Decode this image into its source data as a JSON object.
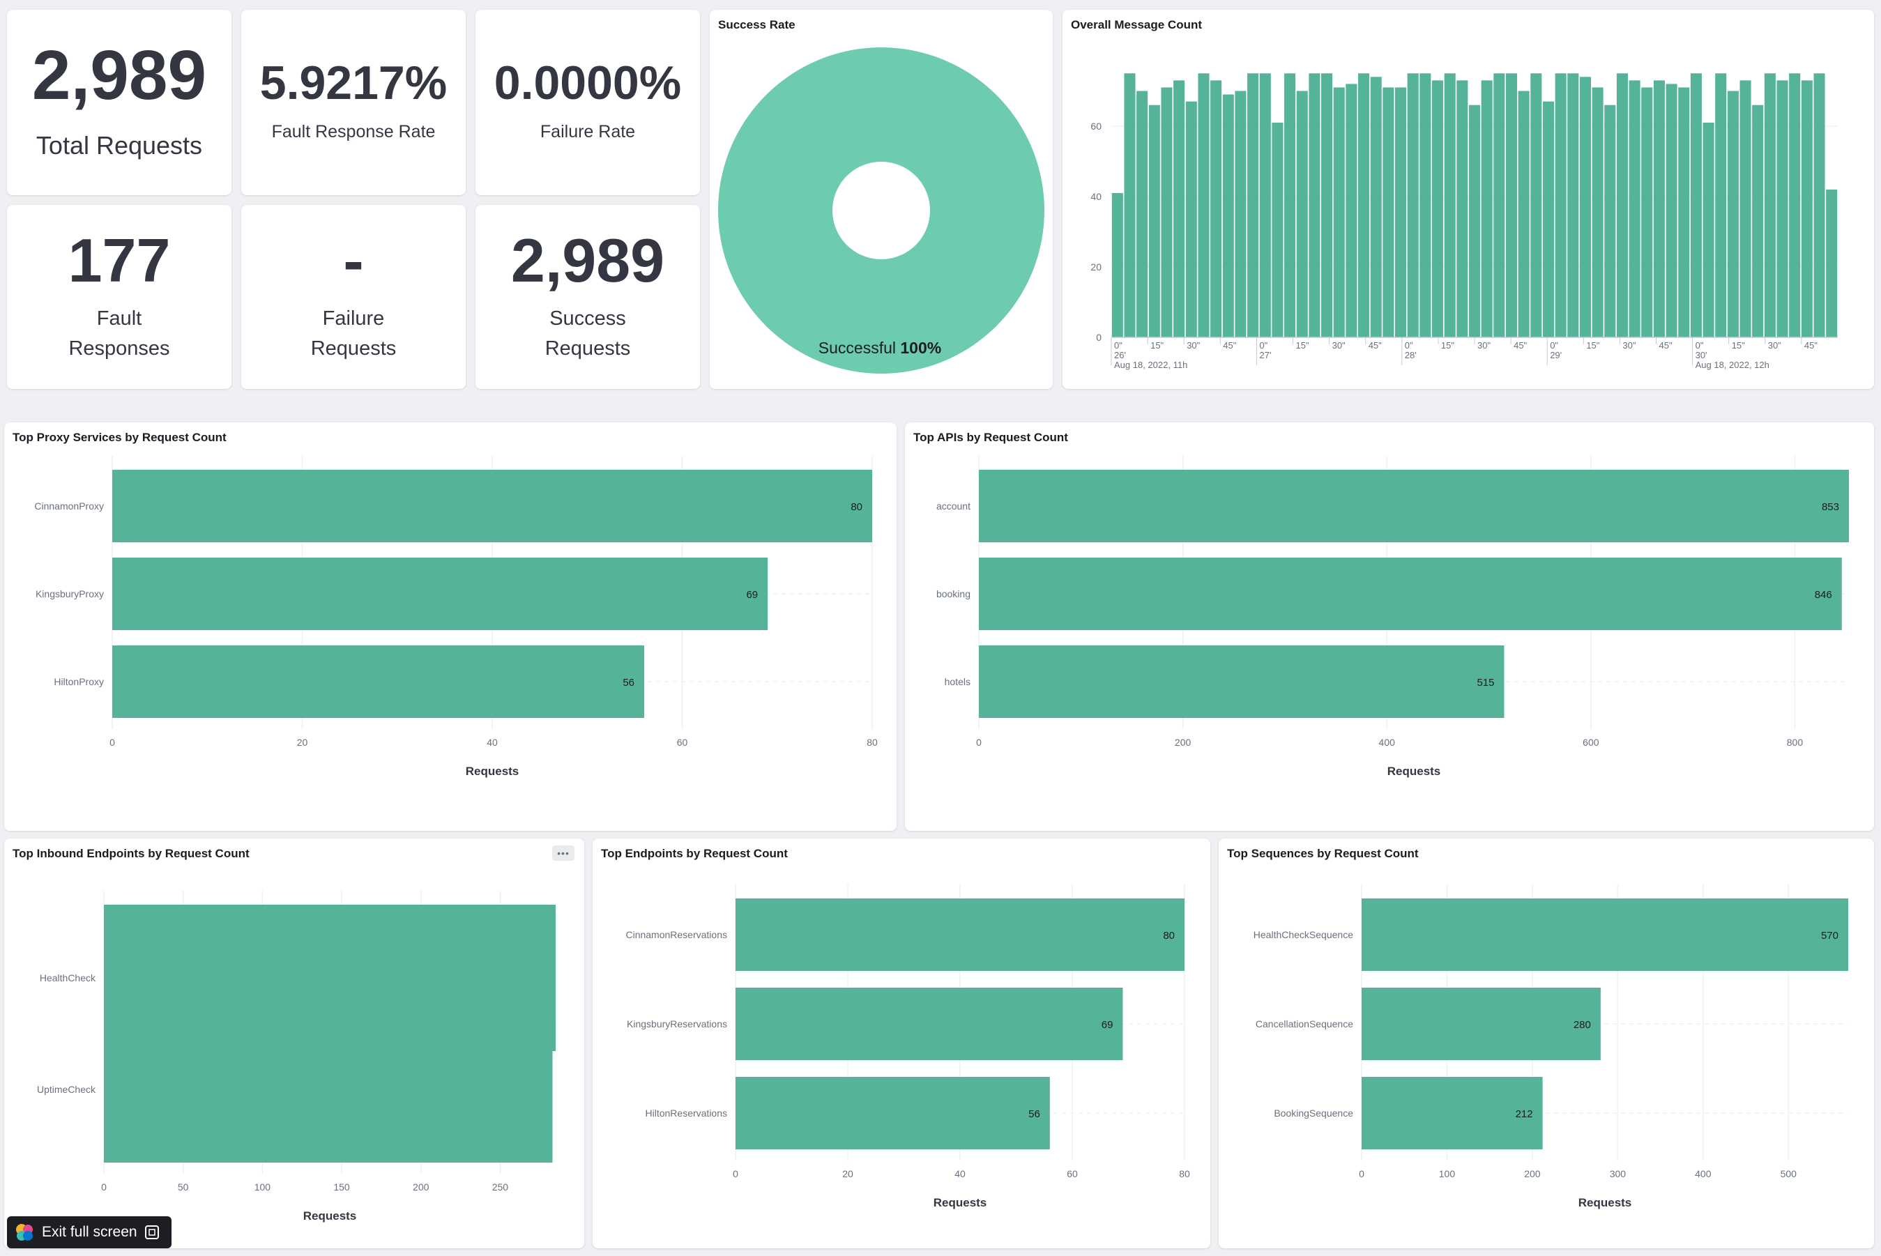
{
  "metrics": {
    "total_requests": {
      "value": "2,989",
      "label": "Total Requests"
    },
    "fault_response_rate": {
      "value": "5.9217%",
      "label": "Fault Response Rate"
    },
    "failure_rate": {
      "value": "0.0000%",
      "label": "Failure Rate"
    },
    "fault_responses": {
      "value": "177",
      "label_line1": "Fault",
      "label_line2": "Responses"
    },
    "failure_requests": {
      "value": "-",
      "label_line1": "Failure",
      "label_line2": "Requests"
    },
    "success_requests": {
      "value": "2,989",
      "label_line1": "Success",
      "label_line2": "Requests"
    }
  },
  "colors": {
    "bar": "#54b399",
    "donut": "#6dcbb0",
    "grid": "#eef0f3",
    "axis": "#69707d"
  },
  "success_rate": {
    "title": "Success Rate",
    "label_text": "Successful ",
    "label_value": "100%"
  },
  "message_count": {
    "title": "Overall Message Count",
    "y_ticks": [
      "0",
      "20",
      "40",
      "60"
    ],
    "x_ticks": [
      "0\"",
      "15\"",
      "30\"",
      "45\"",
      "0\"",
      "15\"",
      "30\"",
      "45\"",
      "0\"",
      "15\"",
      "30\"",
      "45\"",
      "0\"",
      "15\"",
      "30\"",
      "45\"",
      "0\"",
      "15\"",
      "30\"",
      "45\""
    ],
    "minute_labels": [
      "26'",
      "27'",
      "28'",
      "29'",
      "30'"
    ],
    "date_labels": [
      "Aug 18, 2022, 11h",
      "Aug 18, 2022, 12h"
    ]
  },
  "chart_data": [
    {
      "type": "pie",
      "title": "Success Rate",
      "labels": [
        "Successful"
      ],
      "values": [
        100
      ]
    },
    {
      "type": "bar",
      "title": "Overall Message Count",
      "ylim": [
        0,
        80
      ],
      "values": [
        41,
        75,
        70,
        66,
        71,
        73,
        67,
        75,
        73,
        69,
        70,
        75,
        75,
        61,
        75,
        70,
        75,
        75,
        71,
        72,
        75,
        74,
        71,
        71,
        75,
        75,
        73,
        75,
        73,
        66,
        73,
        75,
        75,
        70,
        75,
        67,
        75,
        75,
        74,
        71,
        66,
        75,
        73,
        71,
        73,
        72,
        71,
        75,
        61,
        75,
        70,
        73,
        66,
        75,
        73,
        75,
        73,
        75,
        42
      ]
    },
    {
      "type": "bar",
      "title": "Top Proxy Services by Request Count",
      "xlabel": "Requests",
      "categories": [
        "CinnamonProxy",
        "KingsburyProxy",
        "HiltonProxy"
      ],
      "values": [
        80,
        69,
        56
      ],
      "xlim": [
        0,
        80
      ],
      "x_ticks": [
        "0",
        "20",
        "40",
        "60",
        "80"
      ],
      "show_values": true
    },
    {
      "type": "bar",
      "title": "Top APIs by Request Count",
      "xlabel": "Requests",
      "categories": [
        "account",
        "booking",
        "hotels"
      ],
      "values": [
        853,
        846,
        515
      ],
      "xlim": [
        0,
        853
      ],
      "x_ticks": [
        "0",
        "200",
        "400",
        "600",
        "800"
      ],
      "show_values": true
    },
    {
      "type": "bar",
      "title": "Top Inbound Endpoints by Request Count",
      "xlabel": "Requests",
      "categories": [
        "HealthCheck",
        "UptimeCheck"
      ],
      "values": [
        285,
        283
      ],
      "xlim": [
        0,
        285
      ],
      "x_ticks": [
        "0",
        "50",
        "100",
        "150",
        "200",
        "250"
      ],
      "show_values": false
    },
    {
      "type": "bar",
      "title": "Top Endpoints by Request Count",
      "xlabel": "Requests",
      "categories": [
        "CinnamonReservations",
        "KingsburyReservations",
        "HiltonReservations"
      ],
      "values": [
        80,
        69,
        56
      ],
      "xlim": [
        0,
        80
      ],
      "x_ticks": [
        "0",
        "20",
        "40",
        "60",
        "80"
      ],
      "show_values": true
    },
    {
      "type": "bar",
      "title": "Top Sequences by Request Count",
      "xlabel": "Requests",
      "categories": [
        "HealthCheckSequence",
        "CancellationSequence",
        "BookingSequence"
      ],
      "values": [
        570,
        280,
        212
      ],
      "xlim": [
        0,
        570
      ],
      "x_ticks": [
        "0",
        "100",
        "200",
        "300",
        "400",
        "500"
      ],
      "show_values": true
    }
  ],
  "footer": {
    "exit_label": "Exit full screen"
  }
}
